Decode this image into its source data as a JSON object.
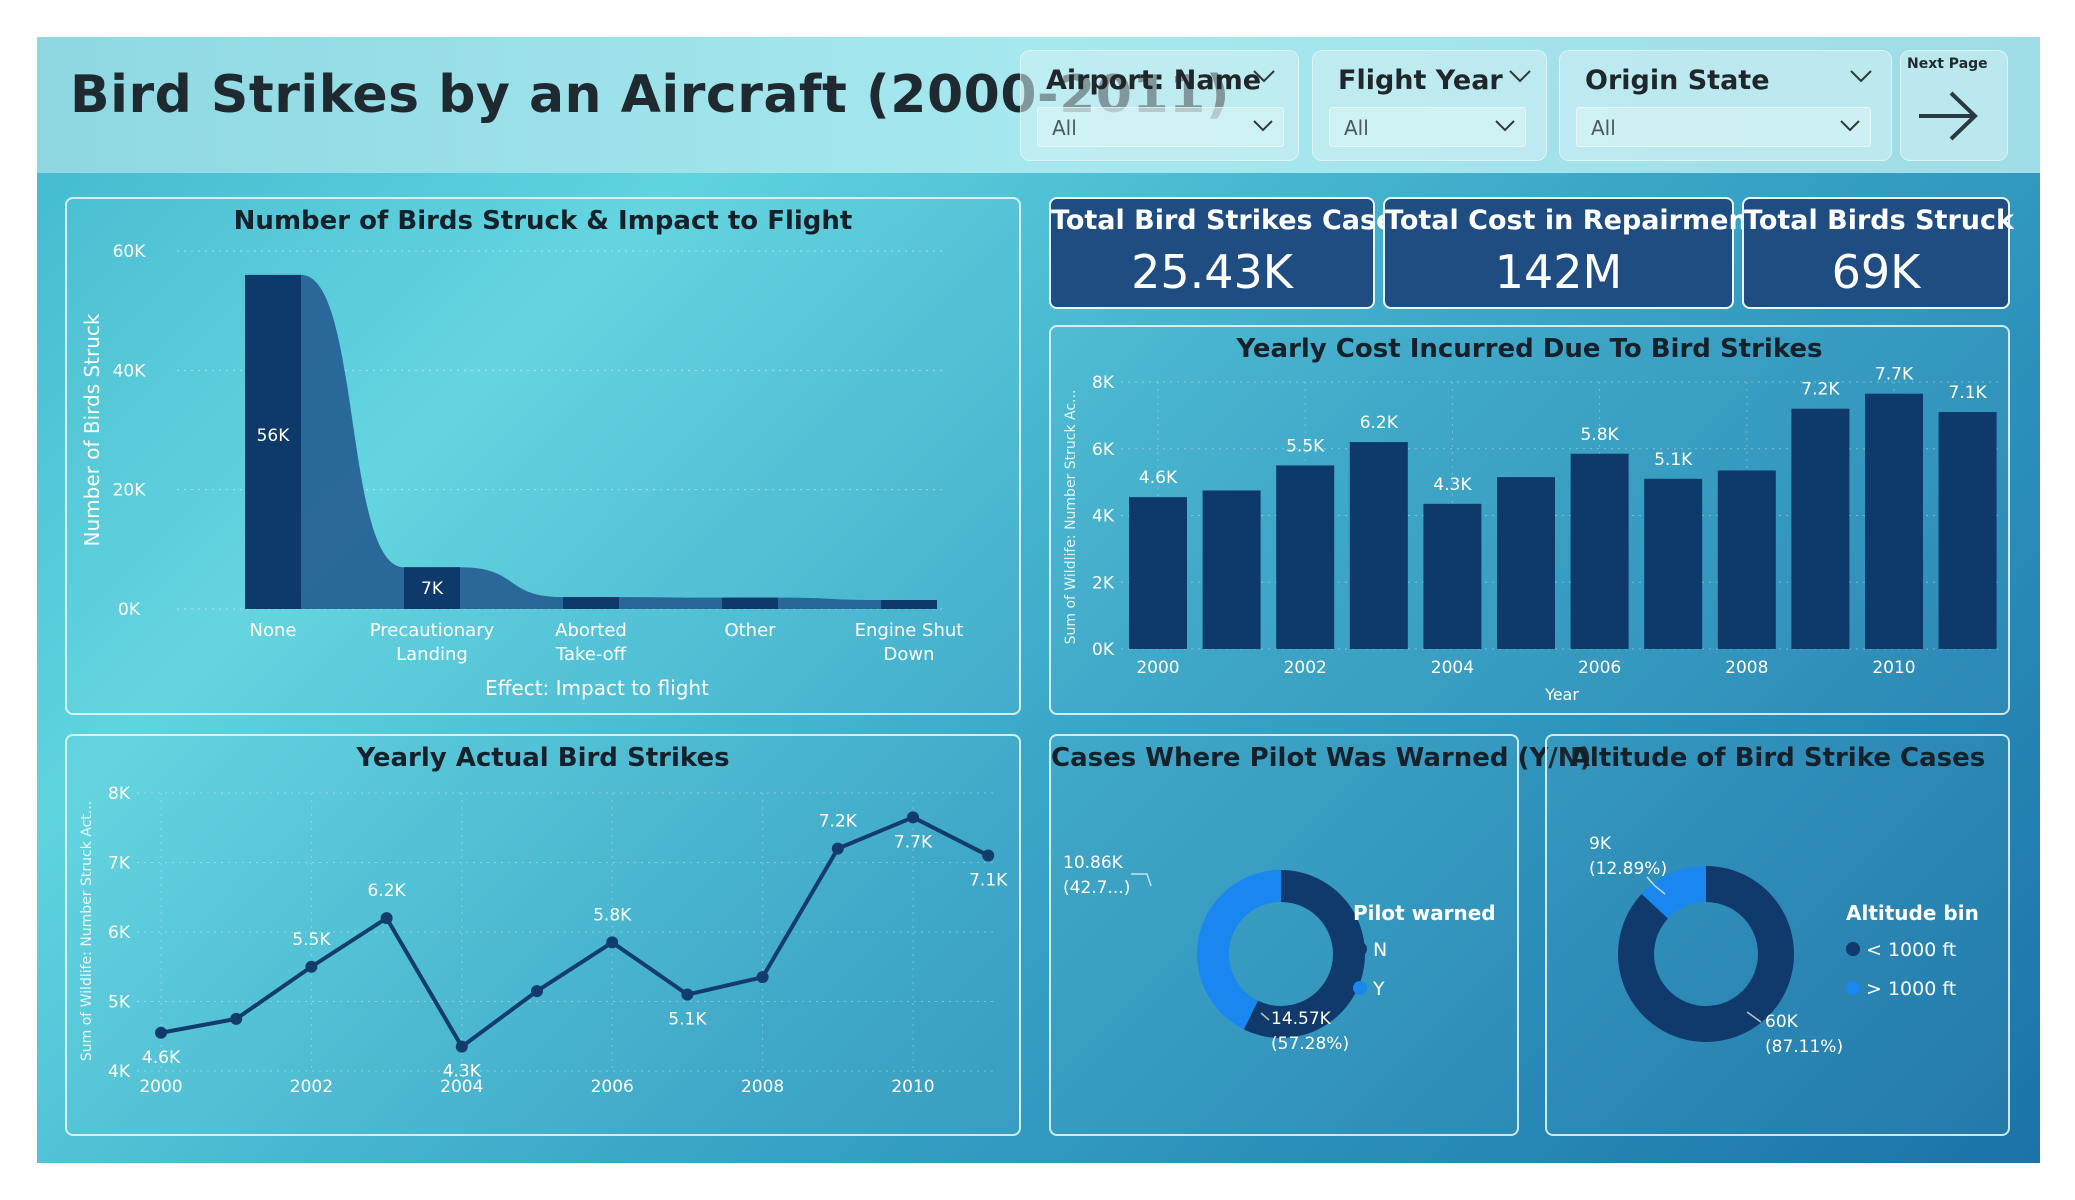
{
  "header": {
    "title": "Bird Strikes by an Aircraft (2000-2011)",
    "slicers": [
      {
        "label": "Airport: Name",
        "value": "All"
      },
      {
        "label": "Flight Year",
        "value": "All"
      },
      {
        "label": "Origin State",
        "value": "All"
      }
    ],
    "next_page_label": "Next Page"
  },
  "kpis": [
    {
      "label": "Total Bird Strikes Cases",
      "value": "25.43K"
    },
    {
      "label": "Total Cost in Repairments",
      "value": "142M"
    },
    {
      "label": "Total Birds Struck",
      "value": "69K"
    }
  ],
  "chart_data": [
    {
      "id": "impact",
      "type": "bar",
      "title": "Number of Birds Struck & Impact to Flight",
      "xlabel": "Effect: Impact to flight",
      "ylabel": "Number of Birds Struck",
      "categories": [
        "None",
        "Precautionary Landing",
        "Aborted Take-off",
        "Other",
        "Engine Shut Down"
      ],
      "values": [
        56000,
        7000,
        2000,
        1900,
        1500
      ],
      "data_labels": [
        "56K",
        "7K",
        "",
        "",
        ""
      ],
      "yticks": [
        "0K",
        "20K",
        "40K",
        "60K"
      ],
      "ylim": [
        0,
        60000
      ],
      "grid": true
    },
    {
      "id": "yearly_cost",
      "type": "bar",
      "title": "Yearly Cost Incurred Due To Bird Strikes",
      "xlabel": "Year",
      "ylabel": "Sum of Wildlife: Number Struck Ac...",
      "x": [
        2000,
        2001,
        2002,
        2003,
        2004,
        2005,
        2006,
        2007,
        2008,
        2009,
        2010,
        2011
      ],
      "values": [
        4550,
        4750,
        5500,
        6200,
        4350,
        5150,
        5850,
        5100,
        5350,
        7200,
        7650,
        7100
      ],
      "data_labels": [
        "4.6K",
        "",
        "5.5K",
        "6.2K",
        "4.3K",
        "",
        "5.8K",
        "5.1K",
        "",
        "7.2K",
        "7.7K",
        "7.1K"
      ],
      "xticks": [
        "2000",
        "2002",
        "2004",
        "2006",
        "2008",
        "2010"
      ],
      "yticks": [
        "0K",
        "2K",
        "4K",
        "6K",
        "8K"
      ],
      "ylim": [
        0,
        8000
      ],
      "grid": true
    },
    {
      "id": "yearly_strikes",
      "type": "line",
      "title": "Yearly Actual Bird Strikes",
      "ylabel": "Sum of Wildlife: Number Struck Act...",
      "x": [
        2000,
        2001,
        2002,
        2003,
        2004,
        2005,
        2006,
        2007,
        2008,
        2009,
        2010,
        2011
      ],
      "values": [
        4550,
        4750,
        5500,
        6200,
        4350,
        5150,
        5850,
        5100,
        5350,
        7200,
        7650,
        7100
      ],
      "data_labels": [
        "4.6K",
        "",
        "5.5K",
        "6.2K",
        "4.3K",
        "",
        "5.8K",
        "5.1K",
        "",
        "7.2K",
        "7.7K",
        "7.1K"
      ],
      "xticks": [
        "2000",
        "2002",
        "2004",
        "2006",
        "2008",
        "2010"
      ],
      "yticks": [
        "4K",
        "5K",
        "6K",
        "7K",
        "8K"
      ],
      "ylim": [
        4000,
        8000
      ],
      "grid": true
    },
    {
      "id": "pilot_warned",
      "type": "pie",
      "title": "Cases Where Pilot Was Warned (Y/N)",
      "legend_title": "Pilot warned",
      "legend": "right",
      "slices": [
        {
          "name": "N",
          "value": 14570,
          "label": "14.57K",
          "pct": "(57.28%)",
          "color": "#103a6b"
        },
        {
          "name": "Y",
          "value": 10860,
          "label": "10.86K",
          "pct": "(42.7...)",
          "color": "#1a86f0"
        }
      ]
    },
    {
      "id": "altitude",
      "type": "pie",
      "title": "Altitude of Bird Strike Cases",
      "legend_title": "Altitude bin",
      "legend": "right",
      "slices": [
        {
          "name": "< 1000 ft",
          "value": 60000,
          "label": "60K",
          "pct": "(87.11%)",
          "color": "#103a6b"
        },
        {
          "name": "> 1000 ft",
          "value": 9000,
          "label": "9K",
          "pct": "(12.89%)",
          "color": "#1a86f0"
        }
      ]
    }
  ],
  "colors": {
    "bar": "#0e3a6b",
    "bar_light": "#235d91",
    "line": "#123c6c",
    "kpi_bg": "#1f4d82"
  }
}
